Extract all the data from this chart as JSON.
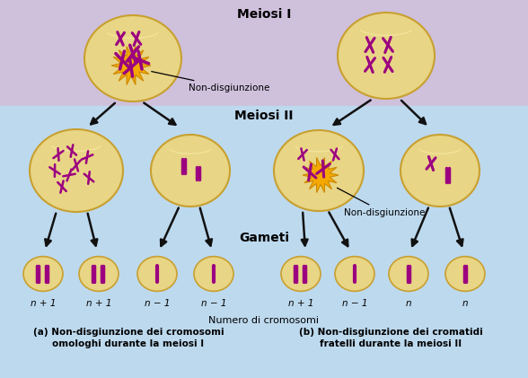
{
  "bg_top": "#cfc0dc",
  "bg_mid": "#bdd9ee",
  "cell_fill": "#e8d585",
  "cell_edge": "#c8a030",
  "cell_shine": "#f5e8a0",
  "chrom_color": "#9b0080",
  "arrow_color": "#111111",
  "burst_color": "#f5a800",
  "burst_inner": "#ffe050",
  "title_meiosis1": "Meiosi I",
  "title_meiosis2": "Meiosi II",
  "title_gameti": "Gameti",
  "label_non_disj": "Non-disgiunzione",
  "label_numero": "Numero di cromosomi",
  "label_a": "(a) Non-disgiunzione dei cromosomi\nomologhi durante la meiosi I",
  "label_b": "(b) Non-disgiunzione dei cromatidi\nfratelli durante la meiosi II",
  "gamete_labels_left": [
    "n + 1",
    "n + 1",
    "n − 1",
    "n − 1"
  ],
  "gamete_labels_right": [
    "n + 1",
    "n − 1",
    "n",
    "n"
  ],
  "fig_width": 5.88,
  "fig_height": 4.21,
  "dpi": 100
}
